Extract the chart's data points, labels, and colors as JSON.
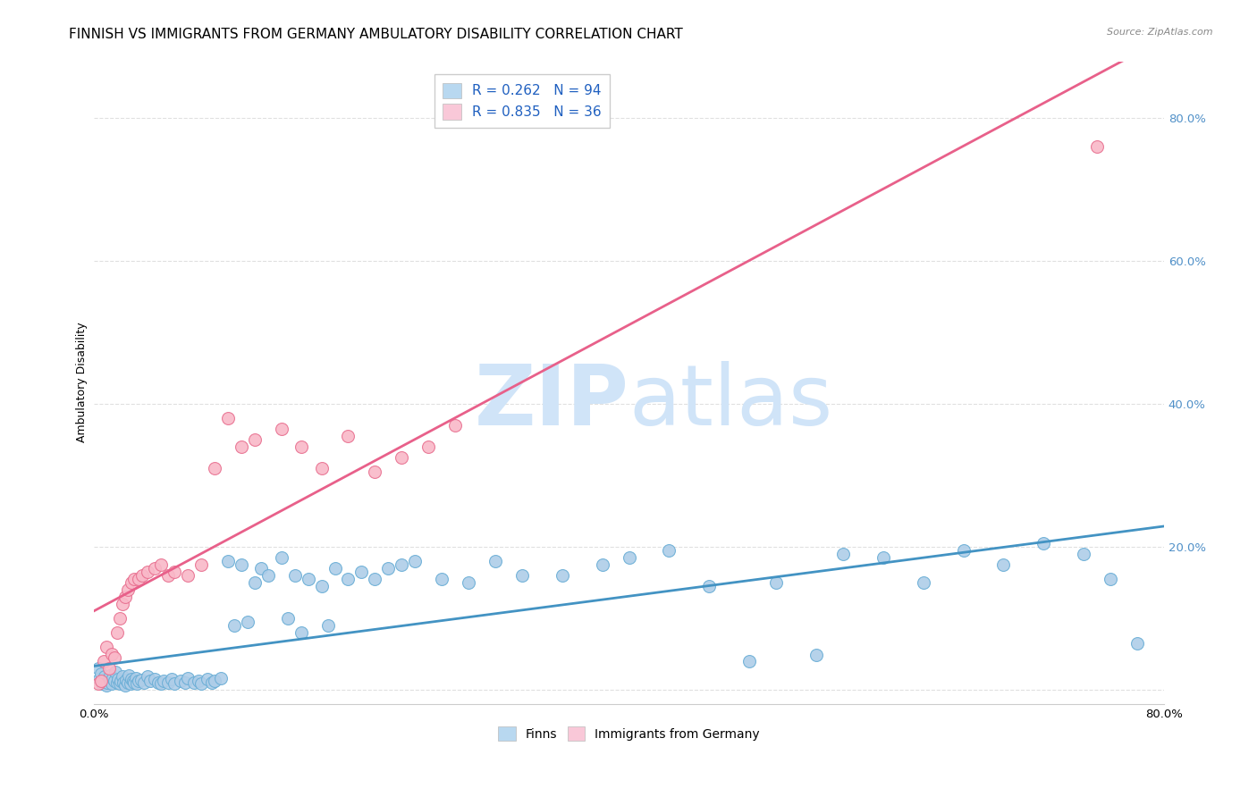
{
  "title": "FINNISH VS IMMIGRANTS FROM GERMANY AMBULATORY DISABILITY CORRELATION CHART",
  "source": "Source: ZipAtlas.com",
  "ylabel": "Ambulatory Disability",
  "xlim": [
    0.0,
    0.8
  ],
  "ylim": [
    -0.02,
    0.88
  ],
  "x_ticks": [
    0.0,
    0.1,
    0.2,
    0.3,
    0.4,
    0.5,
    0.6,
    0.7,
    0.8
  ],
  "y_ticks": [
    0.0,
    0.2,
    0.4,
    0.6,
    0.8
  ],
  "finns_R": 0.262,
  "finns_N": 94,
  "germany_R": 0.835,
  "germany_N": 36,
  "finn_color": "#aecde8",
  "finn_edge_color": "#6aaed6",
  "germany_color": "#f9b8c8",
  "germany_edge_color": "#e87090",
  "finn_line_color": "#4393c3",
  "germany_line_color": "#e8608a",
  "legend_finn_color": "#b8d8f0",
  "legend_germany_color": "#f9c8d8",
  "watermark_color": "#d0e4f8",
  "grid_color": "#e0e0e0",
  "title_fontsize": 11,
  "axis_label_fontsize": 9,
  "tick_fontsize": 9.5,
  "finns_x": [
    0.003,
    0.004,
    0.005,
    0.006,
    0.007,
    0.008,
    0.009,
    0.01,
    0.011,
    0.012,
    0.013,
    0.014,
    0.015,
    0.016,
    0.017,
    0.018,
    0.019,
    0.02,
    0.021,
    0.022,
    0.023,
    0.024,
    0.025,
    0.026,
    0.027,
    0.028,
    0.029,
    0.03,
    0.031,
    0.032,
    0.033,
    0.035,
    0.037,
    0.04,
    0.042,
    0.045,
    0.048,
    0.05,
    0.052,
    0.055,
    0.058,
    0.06,
    0.065,
    0.068,
    0.07,
    0.075,
    0.078,
    0.08,
    0.085,
    0.088,
    0.09,
    0.095,
    0.1,
    0.105,
    0.11,
    0.115,
    0.12,
    0.125,
    0.13,
    0.14,
    0.145,
    0.15,
    0.155,
    0.16,
    0.17,
    0.175,
    0.18,
    0.19,
    0.2,
    0.21,
    0.22,
    0.23,
    0.24,
    0.26,
    0.28,
    0.3,
    0.32,
    0.35,
    0.38,
    0.4,
    0.43,
    0.46,
    0.49,
    0.51,
    0.54,
    0.56,
    0.59,
    0.62,
    0.65,
    0.68,
    0.71,
    0.74,
    0.76,
    0.78
  ],
  "finns_y": [
    0.03,
    0.015,
    0.022,
    0.008,
    0.012,
    0.018,
    0.006,
    0.01,
    0.014,
    0.02,
    0.008,
    0.016,
    0.012,
    0.025,
    0.01,
    0.015,
    0.008,
    0.012,
    0.018,
    0.01,
    0.006,
    0.014,
    0.01,
    0.02,
    0.008,
    0.015,
    0.012,
    0.01,
    0.016,
    0.008,
    0.012,
    0.014,
    0.01,
    0.018,
    0.012,
    0.015,
    0.01,
    0.008,
    0.012,
    0.01,
    0.015,
    0.008,
    0.012,
    0.01,
    0.016,
    0.01,
    0.012,
    0.008,
    0.015,
    0.01,
    0.012,
    0.016,
    0.18,
    0.09,
    0.175,
    0.095,
    0.15,
    0.17,
    0.16,
    0.185,
    0.1,
    0.16,
    0.08,
    0.155,
    0.145,
    0.09,
    0.17,
    0.155,
    0.165,
    0.155,
    0.17,
    0.175,
    0.18,
    0.155,
    0.15,
    0.18,
    0.16,
    0.16,
    0.175,
    0.185,
    0.195,
    0.145,
    0.04,
    0.15,
    0.048,
    0.19,
    0.185,
    0.15,
    0.195,
    0.175,
    0.205,
    0.19,
    0.155,
    0.065
  ],
  "germany_x": [
    0.003,
    0.005,
    0.007,
    0.009,
    0.011,
    0.013,
    0.015,
    0.017,
    0.019,
    0.021,
    0.023,
    0.025,
    0.028,
    0.03,
    0.033,
    0.036,
    0.04,
    0.045,
    0.05,
    0.055,
    0.06,
    0.07,
    0.08,
    0.09,
    0.1,
    0.11,
    0.12,
    0.14,
    0.155,
    0.17,
    0.19,
    0.21,
    0.23,
    0.25,
    0.27,
    0.75
  ],
  "germany_y": [
    0.008,
    0.012,
    0.04,
    0.06,
    0.03,
    0.05,
    0.045,
    0.08,
    0.1,
    0.12,
    0.13,
    0.14,
    0.15,
    0.155,
    0.155,
    0.16,
    0.165,
    0.17,
    0.175,
    0.16,
    0.165,
    0.16,
    0.175,
    0.31,
    0.38,
    0.34,
    0.35,
    0.365,
    0.34,
    0.31,
    0.355,
    0.305,
    0.325,
    0.34,
    0.37,
    0.76
  ]
}
